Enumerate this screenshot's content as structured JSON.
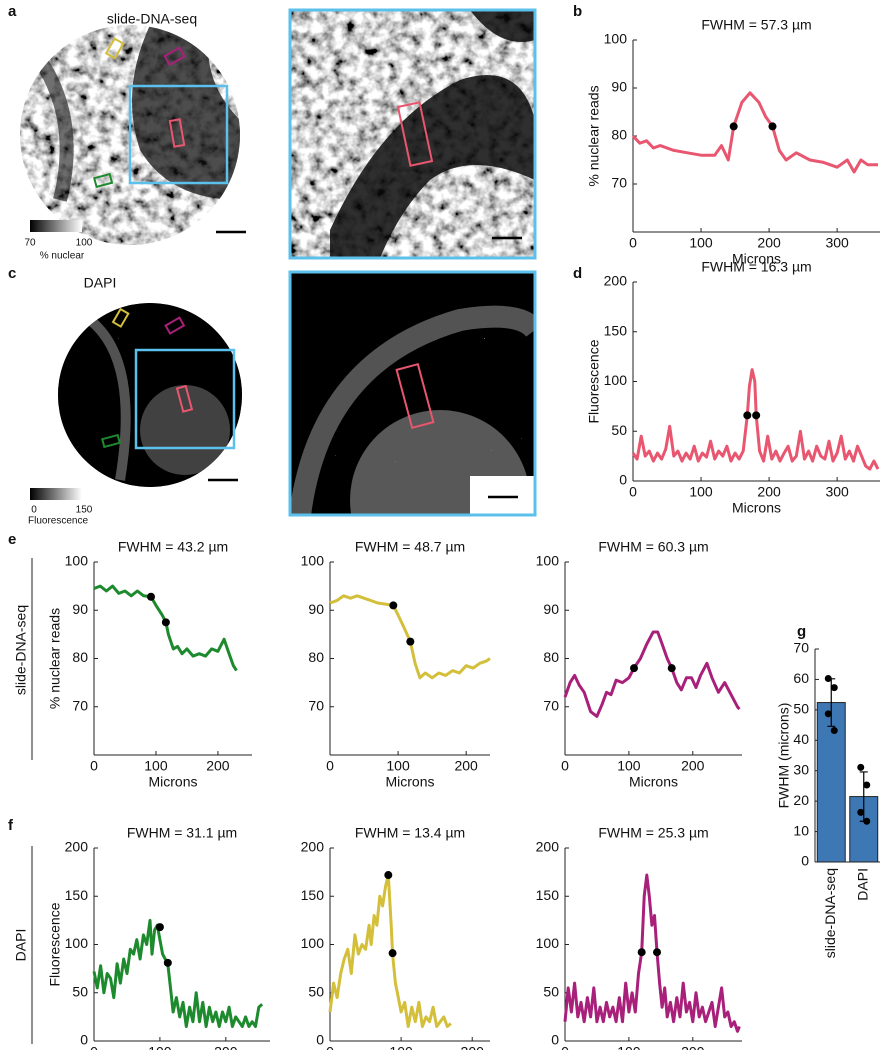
{
  "panel_labels": [
    "a",
    "b",
    "c",
    "d",
    "e",
    "f",
    "g"
  ],
  "row_labels": [
    "slide-DNA-seq",
    "DAPI"
  ],
  "images": [
    {
      "title": "slide-DNA-seq",
      "colorbar": {
        "min": 70,
        "max": 100,
        "label": "% nuclear"
      }
    },
    {
      "title": "DAPI",
      "colorbar": {
        "min": 0,
        "max": 150,
        "label": "Fluorescence"
      }
    }
  ],
  "chart_data": [
    {
      "type": "line",
      "title": "FWHM = 57.3 µm",
      "xlabel": "Microns",
      "ylabel": "% nuclear reads",
      "color": "#e8566f",
      "x": [
        0,
        10,
        20,
        30,
        40,
        60,
        80,
        100,
        120,
        130,
        140,
        148,
        160,
        172,
        185,
        195,
        205,
        215,
        225,
        240,
        260,
        280,
        300,
        315,
        325,
        335,
        345,
        360
      ],
      "values": [
        80,
        78.5,
        79,
        77.5,
        78,
        77,
        76.5,
        76,
        76,
        78,
        75,
        82,
        87,
        89,
        87,
        84,
        82,
        77,
        75,
        76.5,
        75,
        74.5,
        73.5,
        75,
        72.5,
        75,
        74,
        74
      ],
      "points": {
        "x": [
          148,
          205
        ],
        "y": [
          82,
          82
        ]
      },
      "xlim": [
        0,
        363
      ],
      "ylim": [
        60,
        100
      ],
      "xticks": [
        0,
        100,
        200,
        300
      ],
      "yticks": [
        70,
        80,
        90,
        100
      ]
    },
    {
      "type": "line",
      "title": "FWHM = 16.3 µm",
      "xlabel": "Microns",
      "ylabel": "Fluorescence",
      "color": "#e8566f",
      "x": [
        0,
        6,
        12,
        18,
        24,
        30,
        36,
        42,
        48,
        54,
        60,
        66,
        72,
        78,
        84,
        90,
        96,
        102,
        108,
        114,
        120,
        126,
        132,
        138,
        144,
        150,
        156,
        162,
        168,
        171,
        175,
        179,
        181,
        186,
        192,
        198,
        204,
        210,
        216,
        222,
        228,
        234,
        240,
        246,
        252,
        258,
        264,
        270,
        276,
        282,
        288,
        294,
        300,
        306,
        312,
        318,
        324,
        330,
        336,
        342,
        348,
        354,
        360
      ],
      "values": [
        28,
        22,
        45,
        25,
        30,
        20,
        28,
        22,
        32,
        55,
        25,
        30,
        20,
        28,
        22,
        35,
        20,
        28,
        24,
        40,
        22,
        30,
        25,
        35,
        20,
        28,
        22,
        30,
        66,
        95,
        112,
        100,
        66,
        30,
        20,
        45,
        22,
        30,
        20,
        28,
        35,
        20,
        25,
        50,
        22,
        30,
        20,
        35,
        25,
        22,
        40,
        20,
        28,
        45,
        22,
        30,
        20,
        35,
        25,
        15,
        12,
        20,
        12
      ],
      "points": {
        "x": [
          168,
          181
        ],
        "y": [
          66,
          66
        ]
      },
      "xlim": [
        0,
        363
      ],
      "ylim": [
        0,
        200
      ],
      "xticks": [
        0,
        100,
        200,
        300
      ],
      "yticks": [
        0,
        50,
        100,
        150,
        200
      ]
    },
    {
      "type": "line",
      "title": "FWHM = 43.2 µm",
      "xlabel": "Microns",
      "ylabel": "% nuclear reads",
      "color": "#1e8a2e",
      "x": [
        0,
        10,
        20,
        30,
        40,
        50,
        60,
        70,
        80,
        92,
        100,
        110,
        116,
        120,
        128,
        135,
        142,
        150,
        160,
        170,
        180,
        190,
        200,
        210,
        218,
        225,
        230
      ],
      "values": [
        94.5,
        95,
        94,
        95,
        93.5,
        94,
        93,
        94,
        93,
        92.8,
        91,
        89,
        87.5,
        85,
        82,
        82.5,
        81,
        82,
        80.5,
        81,
        80.5,
        82,
        81.5,
        84,
        81,
        78.5,
        77.5
      ],
      "points": {
        "x": [
          92,
          116
        ],
        "y": [
          92.8,
          87.5
        ]
      },
      "xlim": [
        0,
        255
      ],
      "ylim": [
        60,
        100
      ],
      "xticks": [
        0,
        100,
        200
      ],
      "yticks": [
        70,
        80,
        90,
        100
      ]
    },
    {
      "type": "line",
      "title": "FWHM = 48.7 µm",
      "xlabel": "Microns",
      "color": "#d4bf3a",
      "x": [
        0,
        10,
        20,
        30,
        40,
        50,
        60,
        70,
        80,
        93,
        100,
        110,
        118,
        125,
        132,
        140,
        150,
        160,
        170,
        180,
        190,
        200,
        210,
        220,
        230,
        235
      ],
      "values": [
        91.5,
        92,
        93,
        92.5,
        93,
        92.5,
        92,
        91.5,
        91.3,
        91,
        89,
        86,
        83.5,
        79,
        76,
        77,
        76,
        77,
        76.5,
        77.5,
        77,
        78.5,
        78,
        79,
        79.5,
        80
      ],
      "points": {
        "x": [
          93,
          118
        ],
        "y": [
          91,
          83.5
        ]
      },
      "xlim": [
        0,
        235
      ],
      "ylim": [
        60,
        100
      ],
      "xticks": [
        0,
        100,
        200
      ],
      "yticks": [
        70,
        80,
        90,
        100
      ]
    },
    {
      "type": "line",
      "title": "FWHM = 60.3 µm",
      "xlabel": "Microns",
      "color": "#a8207a",
      "x": [
        0,
        8,
        15,
        22,
        30,
        40,
        50,
        58,
        65,
        72,
        80,
        90,
        100,
        108,
        118,
        128,
        138,
        145,
        152,
        160,
        167,
        175,
        182,
        190,
        198,
        205,
        212,
        222,
        230,
        240,
        250,
        260,
        270,
        273
      ],
      "values": [
        72,
        75,
        76.5,
        74.5,
        73,
        69,
        68,
        70.5,
        73,
        72.5,
        75.5,
        75,
        76,
        78,
        80,
        83,
        85.5,
        85.5,
        83,
        80,
        78,
        75,
        73.5,
        76,
        76,
        74,
        76.5,
        79,
        76,
        73,
        75,
        72.5,
        70,
        69.5
      ],
      "points": {
        "x": [
          108,
          167
        ],
        "y": [
          78,
          78
        ]
      },
      "xlim": [
        0,
        277
      ],
      "ylim": [
        60,
        100
      ],
      "xticks": [
        0,
        100,
        200
      ],
      "yticks": [
        70,
        80,
        90,
        100
      ]
    },
    {
      "type": "line",
      "title": "FWHM = 31.1 µm",
      "xlabel": "Microns",
      "ylabel": "Fluorescence",
      "color": "#1e8a2e",
      "x": [
        0,
        5,
        10,
        15,
        20,
        25,
        30,
        35,
        40,
        45,
        50,
        55,
        60,
        65,
        70,
        75,
        80,
        85,
        88,
        92,
        96,
        100,
        104,
        108,
        112,
        116,
        120,
        125,
        130,
        135,
        140,
        145,
        150,
        155,
        160,
        165,
        170,
        175,
        180,
        185,
        190,
        195,
        200,
        205,
        210,
        215,
        220,
        225,
        230,
        235,
        240,
        245,
        250,
        255
      ],
      "values": [
        72,
        55,
        78,
        50,
        70,
        65,
        45,
        80,
        60,
        85,
        70,
        95,
        90,
        105,
        85,
        110,
        100,
        125,
        90,
        115,
        120,
        105,
        90,
        85,
        80,
        55,
        30,
        45,
        25,
        40,
        15,
        35,
        20,
        50,
        20,
        40,
        15,
        35,
        20,
        30,
        15,
        30,
        20,
        35,
        15,
        25,
        20,
        15,
        25,
        15,
        20,
        15,
        35,
        38
      ],
      "points": {
        "x": [
          100,
          112
        ],
        "y": [
          118,
          81
        ]
      },
      "xlim": [
        0,
        267
      ],
      "ylim": [
        0,
        200
      ],
      "xticks": [
        0,
        100,
        200
      ],
      "yticks": [
        0,
        50,
        100,
        150,
        200
      ]
    },
    {
      "type": "line",
      "title": "FWHM = 13.4 µm",
      "xlabel": "Microns",
      "color": "#d4bf3a",
      "x": [
        0,
        5,
        10,
        15,
        20,
        25,
        30,
        35,
        40,
        45,
        50,
        55,
        58,
        62,
        66,
        70,
        74,
        78,
        82,
        86,
        88,
        92,
        96,
        100,
        105,
        110,
        115,
        120,
        125,
        130,
        135,
        140,
        145,
        150,
        155,
        160,
        165,
        170
      ],
      "values": [
        30,
        60,
        45,
        70,
        85,
        95,
        70,
        110,
        90,
        100,
        95,
        120,
        100,
        130,
        120,
        150,
        140,
        160,
        172,
        120,
        90,
        60,
        45,
        30,
        40,
        15,
        35,
        20,
        40,
        15,
        25,
        20,
        35,
        15,
        20,
        25,
        15,
        18
      ],
      "points": {
        "x": [
          82,
          88
        ],
        "y": [
          172,
          91
        ]
      },
      "xlim": [
        0,
        225
      ],
      "ylim": [
        0,
        200
      ],
      "xticks": [
        0,
        100,
        200
      ],
      "yticks": [
        0,
        50,
        100,
        150,
        200
      ]
    },
    {
      "type": "line",
      "title": "FWHM = 25.3 µm",
      "xlabel": "Microns",
      "color": "#a8207a",
      "x": [
        0,
        5,
        10,
        15,
        20,
        25,
        30,
        35,
        40,
        45,
        50,
        55,
        60,
        65,
        70,
        75,
        80,
        85,
        90,
        95,
        100,
        105,
        110,
        115,
        120,
        124,
        128,
        132,
        136,
        140,
        144,
        148,
        152,
        156,
        160,
        165,
        170,
        175,
        180,
        185,
        190,
        195,
        200,
        205,
        210,
        215,
        220,
        225,
        230,
        235,
        240,
        245,
        250,
        255,
        260,
        265,
        270,
        273
      ],
      "values": [
        20,
        55,
        30,
        60,
        25,
        40,
        20,
        45,
        25,
        55,
        20,
        35,
        20,
        40,
        25,
        35,
        20,
        45,
        20,
        60,
        30,
        50,
        30,
        70,
        92,
        150,
        172,
        150,
        120,
        130,
        92,
        60,
        35,
        55,
        25,
        40,
        20,
        45,
        25,
        60,
        30,
        40,
        20,
        50,
        25,
        35,
        20,
        30,
        40,
        15,
        35,
        55,
        25,
        30,
        15,
        20,
        10,
        15
      ],
      "points": {
        "x": [
          120,
          144
        ],
        "y": [
          92,
          92
        ]
      },
      "xlim": [
        0,
        277
      ],
      "ylim": [
        0,
        200
      ],
      "xticks": [
        0,
        100,
        200
      ],
      "yticks": [
        0,
        50,
        100,
        150,
        200
      ]
    },
    {
      "type": "bar",
      "ylabel": "FWHM (microns)",
      "color": "#3d78b5",
      "categories": [
        "slide-DNA-seq",
        "DAPI"
      ],
      "values": [
        52.4,
        21.5
      ],
      "errors": [
        7.8,
        8.1
      ],
      "points": [
        [
          60.3,
          57.3,
          48.7,
          43.2
        ],
        [
          31.1,
          25.3,
          16.3,
          13.4
        ]
      ],
      "ylim": [
        0,
        70
      ],
      "yticks": [
        0,
        10,
        20,
        30,
        40,
        50,
        60,
        70
      ]
    }
  ]
}
